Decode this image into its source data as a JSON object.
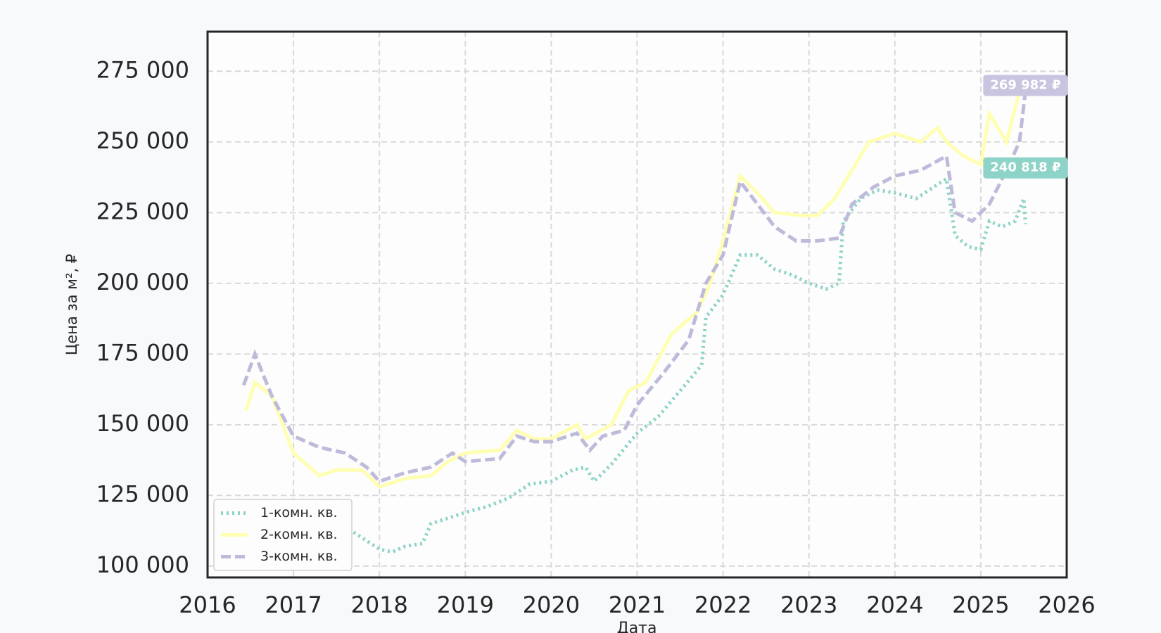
{
  "chart_data": {
    "type": "line",
    "x_label": "Дата",
    "y_label": "Цена за м², ₽",
    "xlim": [
      2016,
      2026
    ],
    "ylim": [
      96000,
      289000
    ],
    "xticks": [
      2016,
      2017,
      2018,
      2019,
      2020,
      2021,
      2022,
      2023,
      2024,
      2025,
      2026
    ],
    "yticks": [
      {
        "value": 100000,
        "label": "100 000"
      },
      {
        "value": 125000,
        "label": "125 000"
      },
      {
        "value": 150000,
        "label": "150 000"
      },
      {
        "value": 175000,
        "label": "175 000"
      },
      {
        "value": 200000,
        "label": "200 000"
      },
      {
        "value": 225000,
        "label": "225 000"
      },
      {
        "value": 250000,
        "label": "250 000"
      },
      {
        "value": 275000,
        "label": "275 000"
      }
    ],
    "grid": true,
    "legend": "lower left",
    "series": [
      {
        "name": "1-комн. кв.",
        "color": "#8dd3c7",
        "linestyle": "dotted",
        "x": [
          2017.7,
          2018.0,
          2018.15,
          2018.3,
          2018.5,
          2018.6,
          2018.8,
          2019.0,
          2019.25,
          2019.5,
          2019.75,
          2020.0,
          2020.25,
          2020.4,
          2020.5,
          2020.7,
          2021.0,
          2021.25,
          2021.5,
          2021.75,
          2021.8,
          2022.0,
          2022.2,
          2022.4,
          2022.6,
          2022.8,
          2023.0,
          2023.2,
          2023.35,
          2023.4,
          2023.6,
          2023.8,
          2024.0,
          2024.25,
          2024.5,
          2024.6,
          2024.7,
          2024.85,
          2025.0,
          2025.1,
          2025.25,
          2025.4,
          2025.5,
          2025.52
        ],
        "values": [
          112000,
          106000,
          105000,
          107000,
          108000,
          115000,
          117000,
          119000,
          121000,
          124000,
          129000,
          130000,
          134000,
          135000,
          130000,
          136000,
          147000,
          153000,
          162000,
          171000,
          188000,
          196000,
          210000,
          210000,
          205000,
          203000,
          200000,
          198000,
          200000,
          222000,
          230000,
          233000,
          232000,
          230000,
          235000,
          237000,
          217000,
          213000,
          212000,
          222000,
          220000,
          222000,
          230000,
          221000
        ]
      },
      {
        "name": "2-комн. кв.",
        "color": "#ffffb3",
        "linestyle": "solid",
        "x": [
          2016.45,
          2016.55,
          2016.75,
          2017.0,
          2017.3,
          2017.5,
          2017.8,
          2018.0,
          2018.3,
          2018.6,
          2018.8,
          2019.0,
          2019.4,
          2019.6,
          2019.8,
          2020.0,
          2020.3,
          2020.4,
          2020.7,
          2020.9,
          2021.1,
          2021.4,
          2021.7,
          2021.85,
          2022.0,
          2022.2,
          2022.4,
          2022.6,
          2022.9,
          2023.1,
          2023.3,
          2023.5,
          2023.7,
          2024.0,
          2024.3,
          2024.5,
          2024.6,
          2024.8,
          2025.0,
          2025.1,
          2025.3,
          2025.45,
          2025.52
        ],
        "values": [
          155000,
          165000,
          160000,
          140000,
          132000,
          134000,
          134000,
          128000,
          131000,
          132000,
          137000,
          140000,
          141000,
          148000,
          145000,
          145000,
          150000,
          145000,
          150000,
          162000,
          165000,
          182000,
          190000,
          200000,
          215000,
          238000,
          232000,
          225000,
          224000,
          224000,
          230000,
          240000,
          250000,
          253000,
          250000,
          255000,
          250000,
          245000,
          242000,
          260000,
          250000,
          268000,
          270000
        ]
      },
      {
        "name": "3-комн. кв.",
        "color": "#bebada",
        "linestyle": "dashed",
        "x": [
          2016.42,
          2016.55,
          2016.75,
          2017.0,
          2017.3,
          2017.6,
          2017.85,
          2018.0,
          2018.3,
          2018.6,
          2018.85,
          2019.0,
          2019.4,
          2019.6,
          2019.8,
          2020.0,
          2020.3,
          2020.45,
          2020.6,
          2020.85,
          2021.0,
          2021.3,
          2021.6,
          2021.8,
          2022.0,
          2022.2,
          2022.4,
          2022.6,
          2022.85,
          2023.1,
          2023.35,
          2023.5,
          2023.75,
          2024.0,
          2024.3,
          2024.6,
          2024.7,
          2024.9,
          2025.1,
          2025.3,
          2025.45,
          2025.52
        ],
        "values": [
          164000,
          175000,
          160000,
          146000,
          142000,
          140000,
          135000,
          130000,
          133000,
          135000,
          140000,
          137000,
          138000,
          146000,
          144000,
          144000,
          147000,
          141000,
          146000,
          148000,
          157000,
          168000,
          180000,
          200000,
          210000,
          236000,
          228000,
          220000,
          215000,
          215000,
          216000,
          228000,
          234000,
          238000,
          240000,
          245000,
          225000,
          222000,
          228000,
          240000,
          250000,
          268000
        ]
      }
    ],
    "annotations": [
      {
        "text": "269 982 ₽",
        "value": 269982,
        "color": "#c9c5e0"
      },
      {
        "text": "240 818 ₽",
        "value": 240818,
        "color": "#8dd3c7"
      }
    ]
  }
}
